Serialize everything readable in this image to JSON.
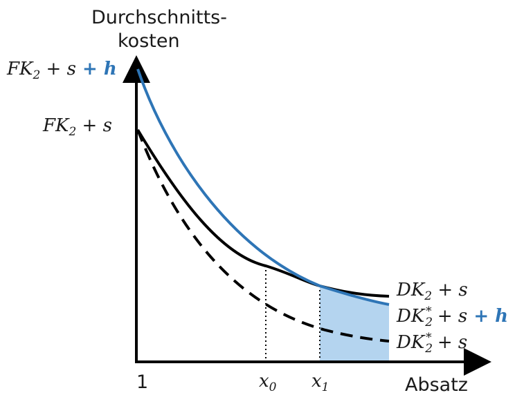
{
  "axes": {
    "y_label_line1": "Durchschnitts-",
    "y_label_line2": "kosten",
    "x_label": "Absatz"
  },
  "x_ticks": {
    "origin": "1",
    "x0": {
      "base": "x",
      "sub": "0"
    },
    "x1": {
      "base": "x",
      "sub": "1"
    }
  },
  "y_ticks": {
    "upper": {
      "fk": "FK",
      "sub": "2",
      "plus_s": " + s",
      "plus_h": " + h"
    },
    "lower": {
      "fk": "FK",
      "sub": "2",
      "plus_s": " + s"
    }
  },
  "curve_labels": {
    "dk2_s": {
      "dk": "DK",
      "sub": "2",
      "rest": " + s"
    },
    "dk2star_s_h": {
      "dk": "DK",
      "sub": "2",
      "sup": "*",
      "rest": " + s",
      "plus_h": " + h"
    },
    "dk2star_s": {
      "dk": "DK",
      "sub": "2",
      "sup": "*",
      "rest": " + s"
    }
  },
  "colors": {
    "black_curve": "#000000",
    "blue_curve": "#2e75b6",
    "shaded_area": "#b4d4ef",
    "axis": "#000000"
  }
}
